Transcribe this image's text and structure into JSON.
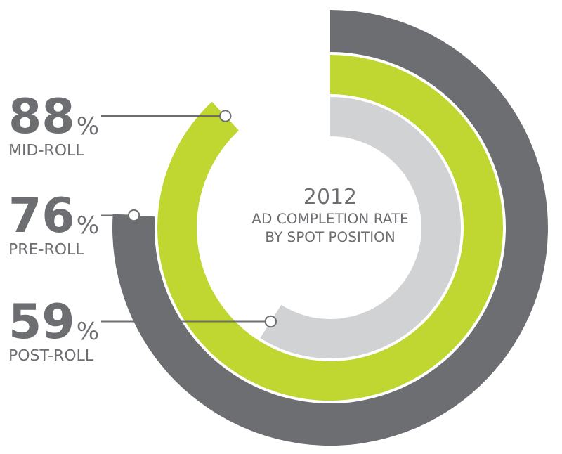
{
  "chart_data": {
    "type": "other",
    "title": "AD COMPLETION RATE BY SPOT POSITION",
    "subtitle": "2012",
    "categories": [
      "MID-ROLL",
      "PRE-ROLL",
      "POST-ROLL"
    ],
    "values": [
      88,
      76,
      59
    ],
    "colors": [
      "#bfd730",
      "#6d6e71",
      "#d1d2d4"
    ],
    "value_labels": [
      "88%",
      "76%",
      "59%"
    ]
  }
}
